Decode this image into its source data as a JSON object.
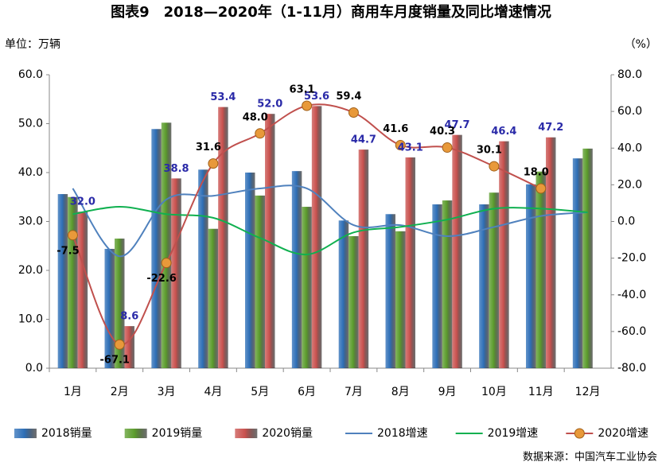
{
  "chart_data": {
    "type": "bar",
    "title": "图表9　2018—2020年（1-11月）商用车月度销量及同比增速情况",
    "y_label": "单位：万辆",
    "y2_label": "（%）",
    "source": "数据来源：中国汽车工业协会",
    "categories": [
      "1月",
      "2月",
      "3月",
      "4月",
      "5月",
      "6月",
      "7月",
      "8月",
      "9月",
      "10月",
      "11月",
      "12月"
    ],
    "ylim": [
      0,
      60
    ],
    "yticks": [
      {
        "value": 0,
        "label": "0.0"
      },
      {
        "value": 10,
        "label": "10.0"
      },
      {
        "value": 20,
        "label": "20.0"
      },
      {
        "value": 30,
        "label": "30.0"
      },
      {
        "value": 40,
        "label": "40.0"
      },
      {
        "value": 50,
        "label": "50.0"
      },
      {
        "value": 60,
        "label": "60.0"
      }
    ],
    "y2lim": [
      -80,
      80
    ],
    "y2ticks": [
      {
        "value": -80,
        "label": "-80.0"
      },
      {
        "value": -60,
        "label": "-60.0"
      },
      {
        "value": -40,
        "label": "-40.0"
      },
      {
        "value": -20,
        "label": "-20.0"
      },
      {
        "value": 0,
        "label": "0.0"
      },
      {
        "value": 20,
        "label": "20.0"
      },
      {
        "value": 40,
        "label": "40.0"
      },
      {
        "value": 60,
        "label": "60.0"
      },
      {
        "value": 80,
        "label": "80.0"
      }
    ],
    "legend": "bottom",
    "series": [
      {
        "name": "2018销量",
        "type": "bar",
        "color": "#2e6fb7",
        "values": [
          35.6,
          24.4,
          48.9,
          40.6,
          40.0,
          40.3,
          30.2,
          31.5,
          33.5,
          33.5,
          37.6,
          42.9
        ]
      },
      {
        "name": "2019销量",
        "type": "bar",
        "color": "#5b9c2c",
        "values": [
          35.0,
          26.5,
          50.2,
          28.5,
          35.3,
          33.0,
          27.0,
          28.0,
          34.3,
          35.9,
          40.2,
          44.9
        ]
      },
      {
        "name": "2020销量",
        "type": "bar",
        "color": "#c9514e",
        "values": [
          32.0,
          8.6,
          38.8,
          53.4,
          52.0,
          53.6,
          44.7,
          43.1,
          47.7,
          46.4,
          47.2,
          null
        ],
        "value_labels": [
          "32.0",
          "8.6",
          "38.8",
          "53.4",
          "52.0",
          "53.6",
          "44.7",
          "43.1",
          "47.7",
          "46.4",
          "47.2",
          null
        ],
        "label_color": "#2a2aa8"
      },
      {
        "name": "2018增速",
        "type": "line",
        "axis": "y2",
        "color": "#4f81bd",
        "values": [
          18,
          -19,
          12,
          14,
          18,
          18,
          -2,
          -2,
          -8,
          -3,
          3,
          5
        ]
      },
      {
        "name": "2019增速",
        "type": "line",
        "axis": "y2",
        "color": "#10b050",
        "values": [
          4,
          8,
          4,
          2,
          -9,
          -18,
          -6,
          -3,
          1,
          7,
          7,
          5
        ]
      },
      {
        "name": "2020增速",
        "type": "line",
        "axis": "y2",
        "color": "#c0504d",
        "marker_color": "#e8993a",
        "values": [
          -7.5,
          -67.1,
          -22.6,
          31.6,
          48.0,
          63.1,
          59.4,
          41.6,
          40.3,
          30.1,
          18.0,
          null
        ],
        "value_labels": [
          "-7.5",
          "-67.1",
          "-22.6",
          "31.6",
          "48.0",
          "63.1",
          "59.4",
          "41.6",
          "40.3",
          "30.1",
          "18.0",
          null
        ],
        "label_color": "#000"
      }
    ]
  }
}
